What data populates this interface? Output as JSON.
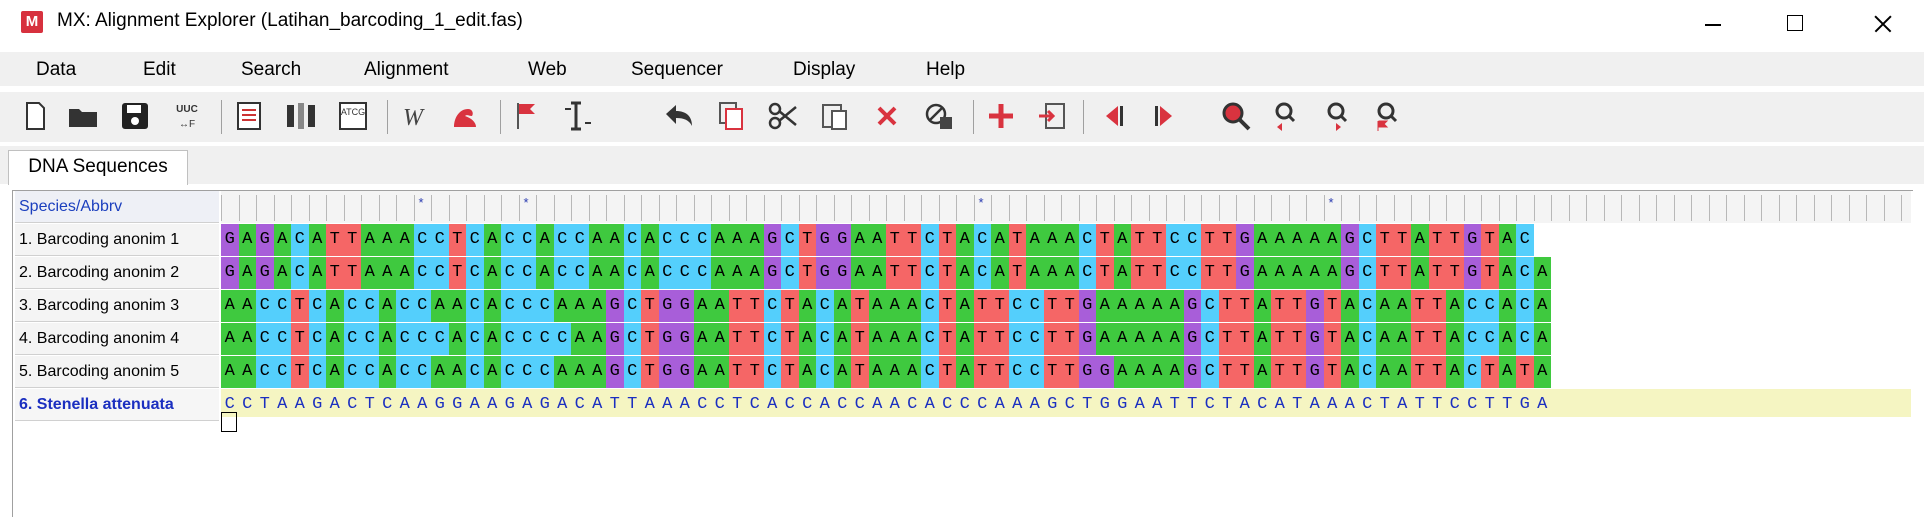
{
  "window": {
    "app_icon_text": "M",
    "title": "MX: Alignment Explorer (Latihan_barcoding_1_edit.fas)"
  },
  "menu": [
    "Data",
    "Edit",
    "Search",
    "Alignment",
    "Web",
    "Sequencer",
    "Display",
    "Help"
  ],
  "toolbar": {
    "buttons": [
      "new-document-icon",
      "open-folder-icon",
      "save-icon",
      "translate-uuc-icon",
      "text-view-icon",
      "columns-icon",
      "atcg-icon",
      "web-w-icon",
      "bicep-icon",
      "flag-icon",
      "insert-gap-icon",
      "undo-icon",
      "copy-icon",
      "cut-icon",
      "paste-icon",
      "delete-icon",
      "gap-delete-icon",
      "add-icon",
      "import-icon",
      "previous-icon",
      "next-icon",
      "search-icon",
      "find-previous-icon",
      "find-next-icon",
      "find-marker-icon"
    ],
    "uuc_label": "UUC",
    "atcg_label": "ATCG"
  },
  "tabs": {
    "active": "DNA Sequences"
  },
  "grid": {
    "header": "Species/Abbrv",
    "sites_marked": [
      11,
      17,
      43,
      63
    ],
    "rows": [
      {
        "name": "1. Barcoding anonim 1",
        "seq": "GAGACATTAAACCTCACCACCAACACCCAAAGCTGGAATTCTACATAAACTATTCCTTGAAAAAGCTTATTGTAC"
      },
      {
        "name": "2. Barcoding anonim 2",
        "seq": "GAGACATTAAACCTCACCACCAACACCCAAAGCTGGAATTCTACATAAACTATTCCTTGAAAAAGCTTATTGTACA"
      },
      {
        "name": "3. Barcoding anonim 3",
        "seq": "AACCTCACCACCAACACCCAAAGCTGGAATTCTACATAAACTATTCCTTGAAAAAGCTTATTGTACAATTACCACA"
      },
      {
        "name": "4. Barcoding anonim 4",
        "seq": "AACCTCACCACCCACACCCCAAGCTGGAATTCTACATAAACTATTCCTTGAAAAAGCTTATTGTACAATTACCACA"
      },
      {
        "name": "5. Barcoding anonim 5",
        "seq": "AACCTCACCACCAACACCCAAAGCTGGAATTCTACATAAACTATTCCTTGGAAAAGCTTATTGTACAATTACTATA"
      },
      {
        "name": "6. Stenella attenuata",
        "seq": "CCTAAGACTCAAGGAAGAGACATTAAACCTCACCACCAACACCCAAAGCTGGAATTCTACATAAACTATTCCTTGA",
        "colored": false
      }
    ]
  },
  "colors": {
    "A": "#3fc93f",
    "C": "#54cffc",
    "G": "#a85ed9",
    "T": "#f56666",
    "plain": "#f5f5c2"
  }
}
